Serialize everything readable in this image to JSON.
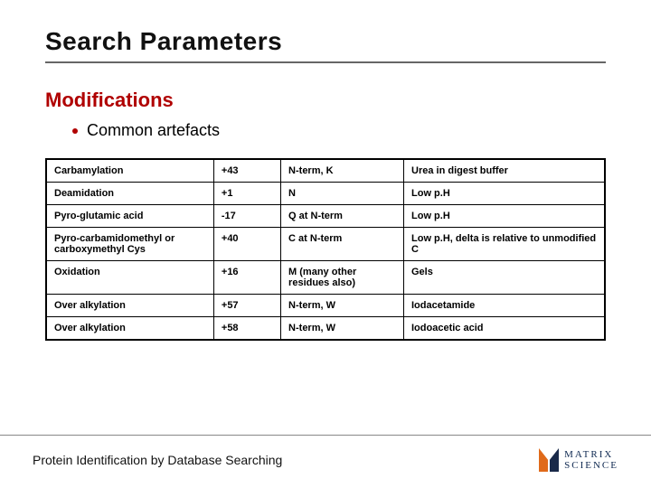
{
  "colors": {
    "accent": "#b00000",
    "text": "#111111",
    "rule": "#666666",
    "table_border": "#000000",
    "logo_orange": "#e06a1a",
    "logo_dark": "#1a2a4a",
    "logo_text": "#102a52"
  },
  "title": "Search Parameters",
  "subtitle": "Modifications",
  "bullet": "Common artefacts",
  "table": {
    "columns": [
      {
        "key": "name",
        "width_pct": 30
      },
      {
        "key": "mass",
        "width_pct": 12
      },
      {
        "key": "residue",
        "width_pct": 22
      },
      {
        "key": "note",
        "width_pct": 36
      }
    ],
    "rows": [
      [
        "Carbamylation",
        "+43",
        "N-term, K",
        "Urea in digest buffer"
      ],
      [
        "Deamidation",
        "+1",
        "N",
        "Low p.H"
      ],
      [
        "Pyro-glutamic acid",
        "-17",
        "Q at N-term",
        "Low p.H"
      ],
      [
        "Pyro-carbamidomethyl or carboxymethyl Cys",
        "+40",
        "C at N-term",
        "Low p.H, delta is relative to unmodified C"
      ],
      [
        "Oxidation",
        "+16",
        "M (many other residues also)",
        "Gels"
      ],
      [
        "Over alkylation",
        "+57",
        "N-term, W",
        "Iodacetamide"
      ],
      [
        "Over alkylation",
        "+58",
        "N-term, W",
        "Iodoacetic acid"
      ]
    ]
  },
  "footer": {
    "text": "Protein Identification by Database Searching",
    "logo_line1": "MATRIX",
    "logo_line2": "SCIENCE"
  }
}
